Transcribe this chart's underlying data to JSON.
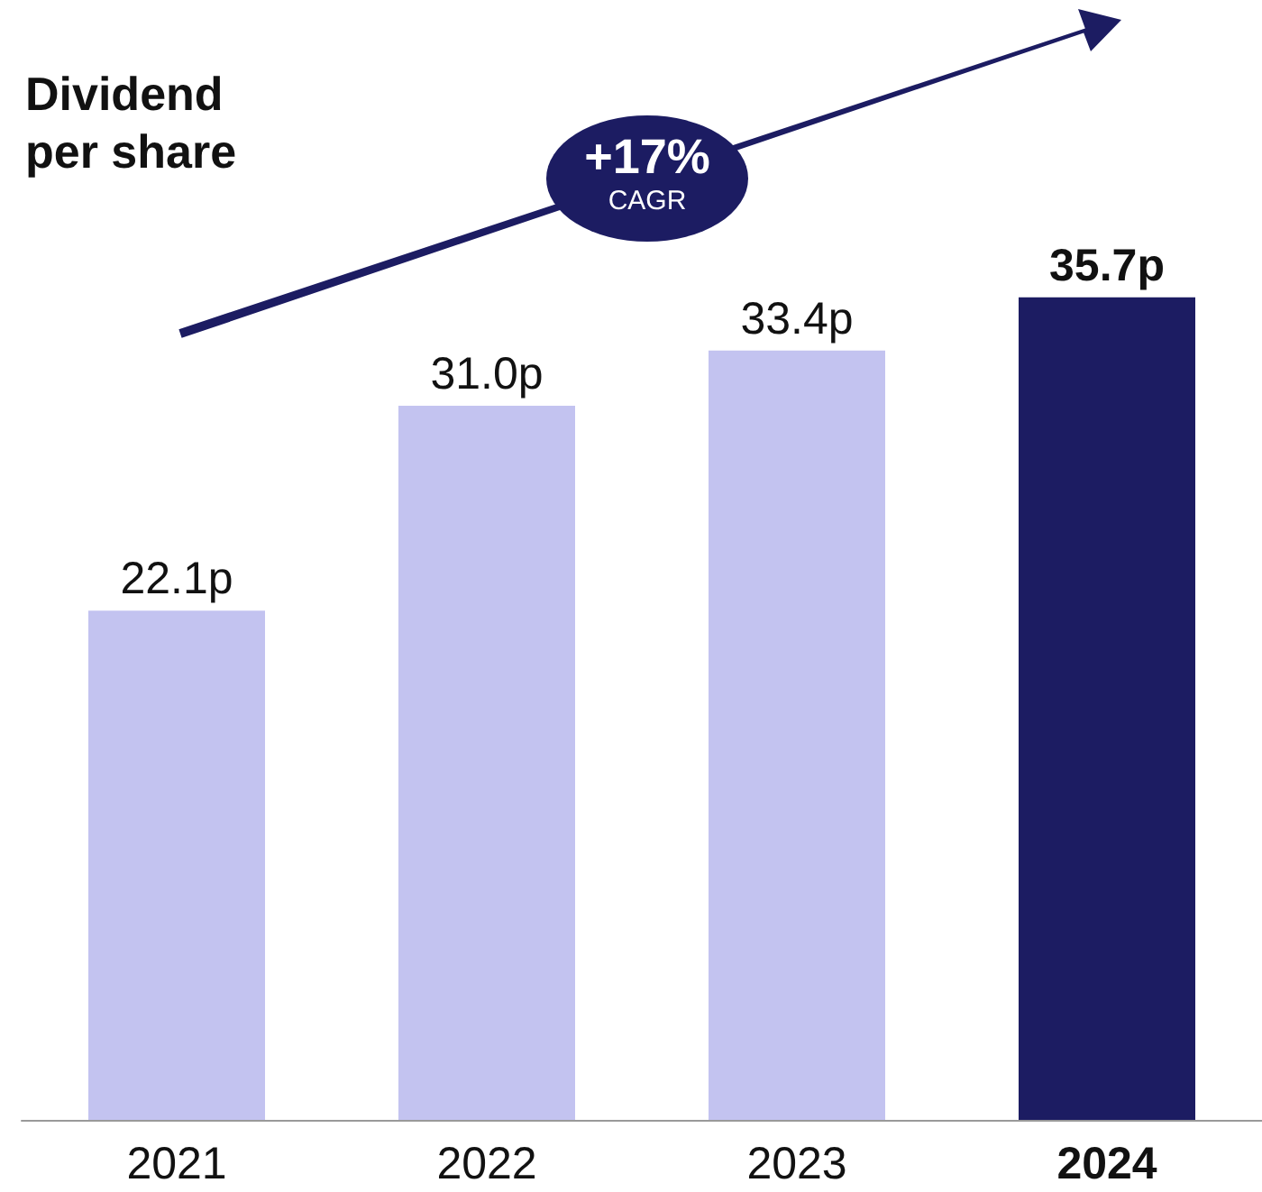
{
  "chart_data": {
    "type": "bar",
    "title": "Dividend per share",
    "categories": [
      "2021",
      "2022",
      "2023",
      "2024"
    ],
    "values": [
      22.1,
      31.0,
      33.4,
      35.7
    ],
    "value_labels": [
      "22.1p",
      "31.0p",
      "33.4p",
      "35.7p"
    ],
    "colors": [
      "#c3c3f0",
      "#c3c3f0",
      "#c3c3f0",
      "#1c1c62"
    ],
    "annotations": [
      "+17%",
      "CAGR"
    ]
  }
}
